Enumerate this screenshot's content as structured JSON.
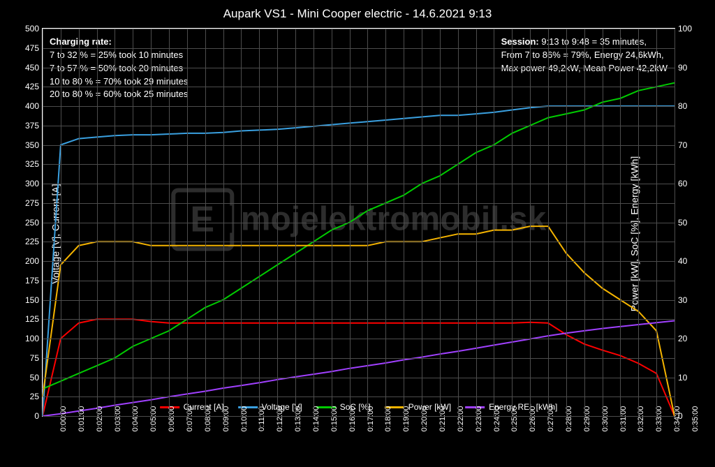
{
  "title": "Aupark VS1 - Mini Cooper electric - 14.6.2021 9:13",
  "watermark": "mojelektromobil.sk",
  "axes": {
    "left_label": "Voltage [V], Current [A]",
    "right_label": "Power [kW], SoC [%], Energy [kWh]",
    "left_min": 0,
    "left_max": 500,
    "left_step": 25,
    "right_min": 0,
    "right_max": 100,
    "right_step": 10
  },
  "x_ticks": [
    "0:00:00",
    "0:01:00",
    "0:02:00",
    "0:03:00",
    "0:04:00",
    "0:05:00",
    "0:06:00",
    "0:07:00",
    "0:08:00",
    "0:09:00",
    "0:10:00",
    "0:11:00",
    "0:12:00",
    "0:13:00",
    "0:14:00",
    "0:15:00",
    "0:16:00",
    "0:17:00",
    "0:18:00",
    "0:19:00",
    "0:20:00",
    "0:21:00",
    "0:22:00",
    "0:23:00",
    "0:24:00",
    "0:25:00",
    "0:26:00",
    "0:27:00",
    "0:28:00",
    "0:29:00",
    "0:30:00",
    "0:31:00",
    "0:32:00",
    "0:33:00",
    "0:34:00",
    "0:35:00"
  ],
  "info_left": {
    "heading": "Charging rate:",
    "lines": [
      "   7 to 32 % = 25% took  10 minutes",
      "   7 to 57 % = 50% took  20 minutes",
      " 10 to 80 % = 70% took  29 minutes",
      " 20 to 80 % = 60% took  25 minutes"
    ]
  },
  "info_right": {
    "heading": "Session:",
    "heading_rest": "  9:13 to 9:48 = 35 minutes,",
    "lines": [
      "From 7 to 86% = 79%, Energy 24,6kWh,",
      "Max power 49,2kW, Mean Power  42,2kW"
    ]
  },
  "legend": [
    {
      "label": "Current [A]",
      "color": "#ff0000"
    },
    {
      "label": "Voltage [V]",
      "color": "#3aa0e0"
    },
    {
      "label": "SoC [%]",
      "color": "#00cc00"
    },
    {
      "label": "Power [kW]",
      "color": "#f5b400"
    },
    {
      "label": "Energy REL [kWh]",
      "color": "#a040ff"
    }
  ],
  "series": {
    "current": {
      "axis": "left",
      "color": "#ff0000",
      "width": 2,
      "data": [
        0,
        100,
        120,
        125,
        125,
        125,
        122,
        120,
        120,
        120,
        120,
        120,
        120,
        120,
        120,
        120,
        120,
        120,
        120,
        120,
        120,
        120,
        120,
        120,
        120,
        120,
        120,
        121,
        120,
        105,
        93,
        85,
        78,
        68,
        55,
        0
      ]
    },
    "voltage": {
      "axis": "left",
      "color": "#3aa0e0",
      "width": 2,
      "data": [
        0,
        350,
        358,
        360,
        362,
        363,
        363,
        364,
        365,
        365,
        366,
        368,
        369,
        370,
        372,
        374,
        376,
        378,
        380,
        382,
        384,
        386,
        388,
        388,
        390,
        392,
        395,
        398,
        400,
        400,
        400,
        400,
        400,
        400,
        400,
        400
      ]
    },
    "soc": {
      "axis": "right",
      "color": "#00cc00",
      "width": 2,
      "data": [
        7,
        9,
        11,
        13,
        15,
        18,
        20,
        22,
        25,
        28,
        30,
        33,
        36,
        39,
        42,
        45,
        48,
        50,
        53,
        55,
        57,
        60,
        62,
        65,
        68,
        70,
        73,
        75,
        77,
        78,
        79,
        81,
        82,
        84,
        85,
        86
      ]
    },
    "power": {
      "axis": "right",
      "color": "#f5b400",
      "width": 2,
      "data": [
        5,
        39,
        44,
        45,
        45,
        45,
        44,
        44,
        44,
        44,
        44,
        44,
        44,
        44,
        44,
        44,
        44,
        44,
        44,
        45,
        45,
        45,
        46,
        47,
        47,
        48,
        48,
        49,
        49,
        42,
        37,
        33,
        30,
        27,
        22,
        0
      ]
    },
    "energy": {
      "axis": "right",
      "color": "#a040ff",
      "width": 2,
      "data": [
        0,
        0.6,
        1.3,
        2.0,
        2.8,
        3.5,
        4.2,
        5.0,
        5.7,
        6.4,
        7.2,
        7.9,
        8.6,
        9.4,
        10.1,
        10.8,
        11.5,
        12.3,
        13.0,
        13.7,
        14.5,
        15.2,
        16.0,
        16.7,
        17.5,
        18.3,
        19.1,
        19.9,
        20.7,
        21.4,
        22.0,
        22.6,
        23.1,
        23.6,
        24.1,
        24.6
      ]
    }
  }
}
